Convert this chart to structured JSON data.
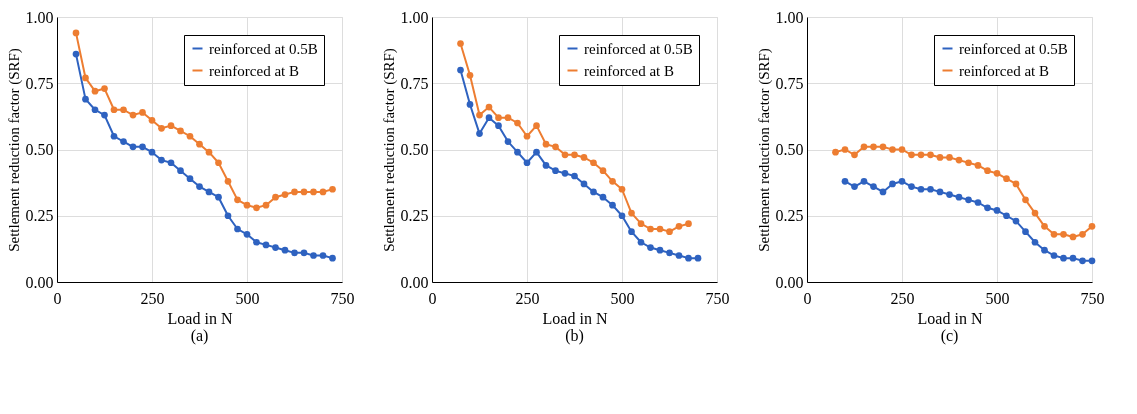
{
  "chart_data": [
    {
      "type": "line",
      "xlabel": "Load in N",
      "ylabel": "Settlement reduction factor (SRF)",
      "annotations": [
        "(a)"
      ],
      "xlim": [
        0,
        750
      ],
      "xticks": [
        0,
        250,
        500,
        750
      ],
      "ylim": [
        0,
        1
      ],
      "yticks": [
        {
          "value": 0,
          "label": "0.00"
        },
        {
          "value": 0.25,
          "label": "0.25"
        },
        {
          "value": 0.5,
          "label": "0.50"
        },
        {
          "value": 0.75,
          "label": "0.75"
        },
        {
          "value": 1,
          "label": "1.00"
        }
      ],
      "grid": true,
      "legend": "top right",
      "marker": "circle",
      "line_style": "solid",
      "series": [
        {
          "name": "reinforced at 0.5B",
          "color": "#2e62c0",
          "x": [
            50,
            75,
            100,
            125,
            150,
            175,
            200,
            225,
            250,
            275,
            300,
            325,
            350,
            375,
            400,
            425,
            450,
            475,
            500,
            525,
            550,
            575,
            600,
            625,
            650,
            675,
            700,
            725
          ],
          "values": [
            0.86,
            0.69,
            0.65,
            0.63,
            0.55,
            0.53,
            0.51,
            0.51,
            0.49,
            0.46,
            0.45,
            0.42,
            0.39,
            0.36,
            0.34,
            0.32,
            0.25,
            0.2,
            0.18,
            0.15,
            0.14,
            0.13,
            0.12,
            0.11,
            0.11,
            0.1,
            0.1,
            0.09
          ]
        },
        {
          "name": "reinforced at B",
          "color": "#ed7d31",
          "x": [
            50,
            75,
            100,
            125,
            150,
            175,
            200,
            225,
            250,
            275,
            300,
            325,
            350,
            375,
            400,
            425,
            450,
            475,
            500,
            525,
            550,
            575,
            600,
            625,
            650,
            675,
            700,
            725
          ],
          "values": [
            0.94,
            0.77,
            0.72,
            0.73,
            0.65,
            0.65,
            0.63,
            0.64,
            0.61,
            0.58,
            0.59,
            0.57,
            0.55,
            0.52,
            0.49,
            0.45,
            0.38,
            0.31,
            0.29,
            0.28,
            0.29,
            0.32,
            0.33,
            0.34,
            0.34,
            0.34,
            0.34,
            0.35
          ]
        }
      ]
    },
    {
      "type": "line",
      "xlabel": "Load in N",
      "ylabel": "Settlement reduction factor (SRF)",
      "annotations": [
        "(b)"
      ],
      "xlim": [
        0,
        750
      ],
      "xticks": [
        0,
        250,
        500,
        750
      ],
      "ylim": [
        0,
        1
      ],
      "yticks": [
        {
          "value": 0,
          "label": "0.00"
        },
        {
          "value": 0.25,
          "label": "0.25"
        },
        {
          "value": 0.5,
          "label": "0.50"
        },
        {
          "value": 0.75,
          "label": "0.75"
        },
        {
          "value": 1,
          "label": "1.00"
        }
      ],
      "grid": true,
      "legend": "top right",
      "marker": "circle",
      "line_style": "solid",
      "series": [
        {
          "name": "reinforced at 0.5B",
          "color": "#2e62c0",
          "x": [
            75,
            100,
            125,
            150,
            175,
            200,
            225,
            250,
            275,
            300,
            325,
            350,
            375,
            400,
            425,
            450,
            475,
            500,
            525,
            550,
            575,
            600,
            625,
            650,
            675,
            700
          ],
          "values": [
            0.8,
            0.67,
            0.56,
            0.62,
            0.59,
            0.53,
            0.49,
            0.45,
            0.49,
            0.44,
            0.42,
            0.41,
            0.4,
            0.37,
            0.34,
            0.32,
            0.29,
            0.25,
            0.19,
            0.15,
            0.13,
            0.12,
            0.11,
            0.1,
            0.09,
            0.09
          ]
        },
        {
          "name": "reinforced at B",
          "color": "#ed7d31",
          "x": [
            75,
            100,
            125,
            150,
            175,
            200,
            225,
            250,
            275,
            300,
            325,
            350,
            375,
            400,
            425,
            450,
            475,
            500,
            525,
            550,
            575,
            600,
            625,
            650,
            675
          ],
          "values": [
            0.9,
            0.78,
            0.63,
            0.66,
            0.62,
            0.62,
            0.6,
            0.55,
            0.59,
            0.52,
            0.51,
            0.48,
            0.48,
            0.47,
            0.45,
            0.42,
            0.38,
            0.35,
            0.26,
            0.22,
            0.2,
            0.2,
            0.19,
            0.21,
            0.22
          ]
        }
      ]
    },
    {
      "type": "line",
      "xlabel": "Load in N",
      "ylabel": "Settlement reduction factor (SRF)",
      "annotations": [
        "(c)"
      ],
      "xlim": [
        0,
        750
      ],
      "xticks": [
        0,
        250,
        500,
        750
      ],
      "ylim": [
        0,
        1
      ],
      "yticks": [
        {
          "value": 0,
          "label": "0.00"
        },
        {
          "value": 0.25,
          "label": "0.25"
        },
        {
          "value": 0.5,
          "label": "0.50"
        },
        {
          "value": 0.75,
          "label": "0.75"
        },
        {
          "value": 1,
          "label": "1.00"
        }
      ],
      "grid": true,
      "legend": "top right",
      "marker": "circle",
      "line_style": "solid",
      "series": [
        {
          "name": "reinforced at 0.5B",
          "color": "#2e62c0",
          "x": [
            100,
            125,
            150,
            175,
            200,
            225,
            250,
            275,
            300,
            325,
            350,
            375,
            400,
            425,
            450,
            475,
            500,
            525,
            550,
            575,
            600,
            625,
            650,
            675,
            700,
            725,
            750
          ],
          "values": [
            0.38,
            0.36,
            0.38,
            0.36,
            0.34,
            0.37,
            0.38,
            0.36,
            0.35,
            0.35,
            0.34,
            0.33,
            0.32,
            0.31,
            0.3,
            0.28,
            0.27,
            0.25,
            0.23,
            0.19,
            0.15,
            0.12,
            0.1,
            0.09,
            0.09,
            0.08,
            0.08
          ]
        },
        {
          "name": "reinforced at B",
          "color": "#ed7d31",
          "x": [
            75,
            100,
            125,
            150,
            175,
            200,
            225,
            250,
            275,
            300,
            325,
            350,
            375,
            400,
            425,
            450,
            475,
            500,
            525,
            550,
            575,
            600,
            625,
            650,
            675,
            700,
            725,
            750
          ],
          "values": [
            0.49,
            0.5,
            0.48,
            0.51,
            0.51,
            0.51,
            0.5,
            0.5,
            0.48,
            0.48,
            0.48,
            0.47,
            0.47,
            0.46,
            0.45,
            0.44,
            0.42,
            0.41,
            0.39,
            0.37,
            0.31,
            0.26,
            0.21,
            0.18,
            0.18,
            0.17,
            0.18,
            0.21
          ]
        }
      ]
    }
  ]
}
